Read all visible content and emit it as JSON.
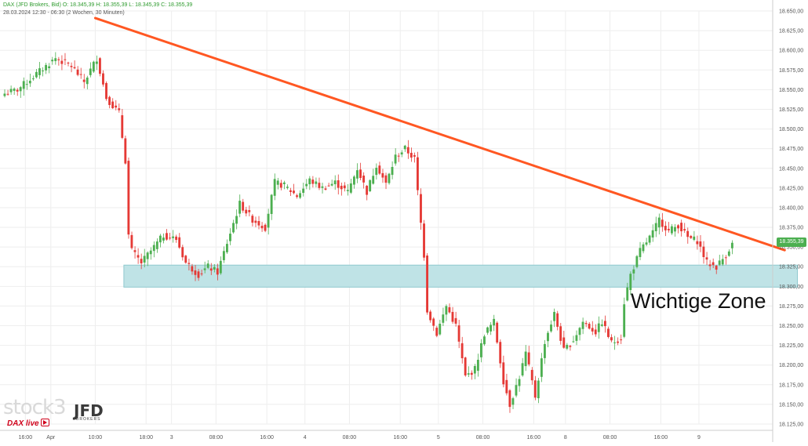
{
  "header": {
    "instrument_line": "DAX (JFD Brokers, Bid)  O: 18.345,39  H: 18.355,39  L: 18.345,39  C: 18.355,39",
    "range_line": "28.03.2024 12:30 - 06:30   (2 Wochen, 30 Minuten)"
  },
  "branding": {
    "stock_logo": "stock3",
    "jfd_logo": "JFD",
    "jfd_sub": "BROKERS",
    "dax_live": "DAX live"
  },
  "price_tag": "18.355,39",
  "zone_label": "Wichtige Zone",
  "colors": {
    "up": "#4caf50",
    "down": "#e53935",
    "trendline": "#ff5722",
    "zone_fill": "#bfe3e6",
    "zone_border": "#8fc9cf",
    "grid": "#eeeeee"
  },
  "chart_data": {
    "type": "candlestick",
    "y_axis": {
      "min": 18125,
      "max": 18650,
      "ticks": [
        18125,
        18150,
        18175,
        18200,
        18225,
        18250,
        18275,
        18300,
        18325,
        18350,
        18375,
        18400,
        18425,
        18450,
        18475,
        18500,
        18525,
        18550,
        18575,
        18600,
        18625,
        18650
      ],
      "tick_labels": [
        "18.125,00",
        "18.150,00",
        "18.175,00",
        "18.200,00",
        "18.225,00",
        "18.250,00",
        "18.275,00",
        "18.300,00",
        "18.325,00",
        "18.350,00",
        "18.375,00",
        "18.400,00",
        "18.425,00",
        "18.450,00",
        "18.475,00",
        "18.500,00",
        "18.525,00",
        "18.550,00",
        "18.575,00",
        "18.600,00",
        "18.625,00",
        "18.650,00"
      ],
      "position": "right"
    },
    "x_axis": {
      "ticks": [
        {
          "label": "16:00",
          "bar": 7
        },
        {
          "label": "Apr",
          "bar": 15
        },
        {
          "label": "10:00",
          "bar": 29
        },
        {
          "label": "18:00",
          "bar": 45
        },
        {
          "label": "3",
          "bar": 53
        },
        {
          "label": "08:00",
          "bar": 67
        },
        {
          "label": "16:00",
          "bar": 83
        },
        {
          "label": "4",
          "bar": 95
        },
        {
          "label": "08:00",
          "bar": 109
        },
        {
          "label": "16:00",
          "bar": 125
        },
        {
          "label": "5",
          "bar": 137
        },
        {
          "label": "08:00",
          "bar": 151
        },
        {
          "label": "16:00",
          "bar": 167
        },
        {
          "label": "8",
          "bar": 177
        },
        {
          "label": "08:00",
          "bar": 191
        },
        {
          "label": "16:00",
          "bar": 207
        },
        {
          "label": "9",
          "bar": 219
        }
      ]
    },
    "grid": true,
    "anchors": [
      {
        "bar": 0,
        "price": 18545
      },
      {
        "bar": 4,
        "price": 18550
      },
      {
        "bar": 10,
        "price": 18570
      },
      {
        "bar": 16,
        "price": 18590
      },
      {
        "bar": 21,
        "price": 18580
      },
      {
        "bar": 25,
        "price": 18560
      },
      {
        "bar": 29,
        "price": 18590
      },
      {
        "bar": 32,
        "price": 18540
      },
      {
        "bar": 36,
        "price": 18520
      },
      {
        "bar": 38,
        "price": 18460
      },
      {
        "bar": 39,
        "price": 18365
      },
      {
        "bar": 40,
        "price": 18345
      },
      {
        "bar": 43,
        "price": 18330
      },
      {
        "bar": 46,
        "price": 18345
      },
      {
        "bar": 50,
        "price": 18365
      },
      {
        "bar": 54,
        "price": 18360
      },
      {
        "bar": 57,
        "price": 18330
      },
      {
        "bar": 61,
        "price": 18315
      },
      {
        "bar": 64,
        "price": 18325
      },
      {
        "bar": 67,
        "price": 18318
      },
      {
        "bar": 71,
        "price": 18368
      },
      {
        "bar": 74,
        "price": 18405
      },
      {
        "bar": 78,
        "price": 18385
      },
      {
        "bar": 82,
        "price": 18375
      },
      {
        "bar": 85,
        "price": 18432
      },
      {
        "bar": 88,
        "price": 18428
      },
      {
        "bar": 92,
        "price": 18415
      },
      {
        "bar": 96,
        "price": 18435
      },
      {
        "bar": 100,
        "price": 18425
      },
      {
        "bar": 104,
        "price": 18432
      },
      {
        "bar": 108,
        "price": 18420
      },
      {
        "bar": 111,
        "price": 18450
      },
      {
        "bar": 114,
        "price": 18420
      },
      {
        "bar": 117,
        "price": 18455
      },
      {
        "bar": 120,
        "price": 18430
      },
      {
        "bar": 123,
        "price": 18465
      },
      {
        "bar": 126,
        "price": 18475
      },
      {
        "bar": 129,
        "price": 18462
      },
      {
        "bar": 130,
        "price": 18420
      },
      {
        "bar": 132,
        "price": 18340
      },
      {
        "bar": 133,
        "price": 18270
      },
      {
        "bar": 136,
        "price": 18240
      },
      {
        "bar": 139,
        "price": 18275
      },
      {
        "bar": 142,
        "price": 18250
      },
      {
        "bar": 145,
        "price": 18185
      },
      {
        "bar": 148,
        "price": 18195
      },
      {
        "bar": 151,
        "price": 18240
      },
      {
        "bar": 154,
        "price": 18255
      },
      {
        "bar": 157,
        "price": 18180
      },
      {
        "bar": 159,
        "price": 18150
      },
      {
        "bar": 162,
        "price": 18185
      },
      {
        "bar": 164,
        "price": 18215
      },
      {
        "bar": 167,
        "price": 18160
      },
      {
        "bar": 170,
        "price": 18230
      },
      {
        "bar": 173,
        "price": 18265
      },
      {
        "bar": 176,
        "price": 18218
      },
      {
        "bar": 179,
        "price": 18232
      },
      {
        "bar": 182,
        "price": 18255
      },
      {
        "bar": 186,
        "price": 18242
      },
      {
        "bar": 188,
        "price": 18255
      },
      {
        "bar": 191,
        "price": 18228
      },
      {
        "bar": 194,
        "price": 18235
      },
      {
        "bar": 195,
        "price": 18280
      },
      {
        "bar": 197,
        "price": 18315
      },
      {
        "bar": 200,
        "price": 18345
      },
      {
        "bar": 204,
        "price": 18368
      },
      {
        "bar": 206,
        "price": 18385
      },
      {
        "bar": 209,
        "price": 18370
      },
      {
        "bar": 212,
        "price": 18378
      },
      {
        "bar": 215,
        "price": 18362
      },
      {
        "bar": 218,
        "price": 18358
      },
      {
        "bar": 221,
        "price": 18330
      },
      {
        "bar": 224,
        "price": 18325
      },
      {
        "bar": 227,
        "price": 18340
      },
      {
        "bar": 229,
        "price": 18355
      }
    ],
    "trendline": {
      "start": {
        "bar": 29,
        "price": 18641
      },
      "end": {
        "bar": 246,
        "price": 18346
      }
    },
    "zone": {
      "from_bar": 38,
      "to_bar": 250,
      "low": 18299,
      "high": 18327
    },
    "last_close": 18355.39
  }
}
